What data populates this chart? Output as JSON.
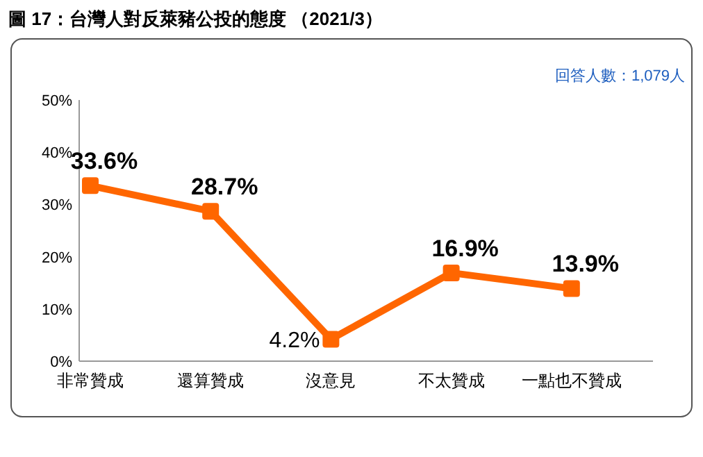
{
  "chart_data": {
    "type": "line",
    "title": "圖 17：台灣人對反萊豬公投的態度 （2021/3）",
    "annotations": [
      "回答人數：1,079人"
    ],
    "categories": [
      "非常贊成",
      "還算贊成",
      "沒意見",
      "不太贊成",
      "一點也不贊成"
    ],
    "series": [
      {
        "color": "#ff6600",
        "values": [
          33.6,
          28.7,
          4.2,
          16.9,
          13.9
        ],
        "value_labels": [
          "33.6%",
          "28.7%",
          "4.2%",
          "16.9%",
          "13.9%"
        ]
      }
    ],
    "ylim": [
      0,
      50
    ],
    "yticks": [
      {
        "value": 0,
        "label": "0%"
      },
      {
        "value": 10,
        "label": "10%"
      },
      {
        "value": 20,
        "label": "20%"
      },
      {
        "value": 30,
        "label": "30%"
      },
      {
        "value": 40,
        "label": "40%"
      },
      {
        "value": 50,
        "label": "50%"
      }
    ],
    "marker": "square",
    "grid": false,
    "legend": false
  }
}
